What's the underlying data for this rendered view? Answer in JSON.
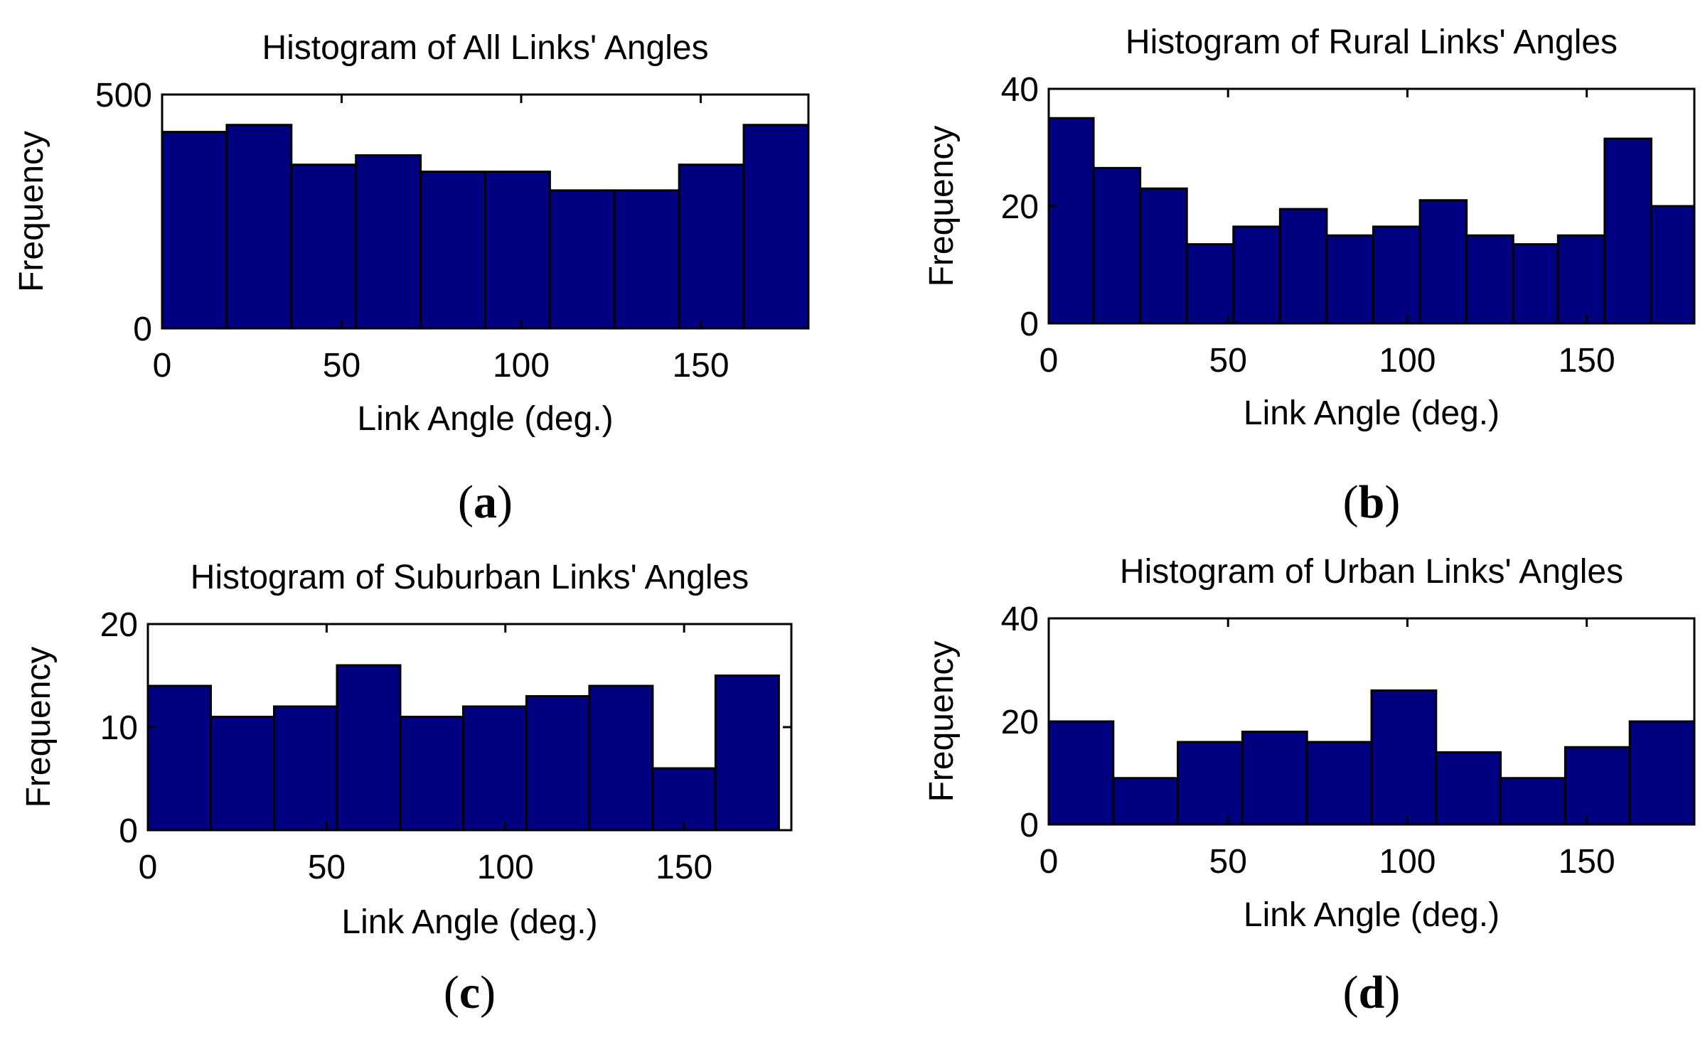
{
  "chart_data": [
    {
      "type": "bar",
      "panel_label": "a",
      "title": "Histogram of All Links' Angles",
      "xlabel": "Link Angle (deg.)",
      "ylabel": "Frequency",
      "xlim": [
        0,
        180
      ],
      "ylim": [
        0,
        500
      ],
      "xticks": [
        "0",
        "50",
        "100",
        "150"
      ],
      "yticks": [
        "0",
        "500"
      ],
      "bin_edges": [
        0,
        18,
        36,
        54,
        72,
        90,
        108,
        126,
        144,
        162,
        180
      ],
      "values": [
        420,
        435,
        350,
        370,
        335,
        335,
        295,
        295,
        350,
        435
      ],
      "bar_color": "#000080"
    },
    {
      "type": "bar",
      "panel_label": "b",
      "title": "Histogram of Rural Links' Angles",
      "xlabel": "Link Angle (deg.)",
      "ylabel": "Frequency",
      "xlim": [
        0,
        180
      ],
      "ylim": [
        0,
        40
      ],
      "xticks": [
        "0",
        "50",
        "100",
        "150"
      ],
      "yticks": [
        "0",
        "20",
        "40"
      ],
      "bin_edges": [
        0,
        12.5,
        25.5,
        38.5,
        51.5,
        64.5,
        77.5,
        90.5,
        103.5,
        116.5,
        129.5,
        142,
        155,
        168,
        180
      ],
      "values": [
        35,
        26.5,
        23,
        13.5,
        16.5,
        19.5,
        15,
        16.5,
        21,
        15,
        13.5,
        15,
        31.5,
        20
      ],
      "bar_color": "#000080"
    },
    {
      "type": "bar",
      "panel_label": "c",
      "title": "Histogram of Suburban Links' Angles",
      "xlabel": "Link Angle (deg.)",
      "ylabel": "Frequency",
      "xlim": [
        0,
        180
      ],
      "ylim": [
        0,
        20
      ],
      "xticks": [
        "0",
        "50",
        "100",
        "150"
      ],
      "yticks": [
        "0",
        "10",
        "20"
      ],
      "bin_edges": [
        0,
        17.6,
        35.3,
        52.9,
        70.6,
        88.2,
        105.9,
        123.5,
        141.2,
        158.8,
        176.5
      ],
      "values": [
        14,
        11,
        12,
        16,
        11,
        12,
        13,
        14,
        6,
        15
      ],
      "bar_color": "#000080"
    },
    {
      "type": "bar",
      "panel_label": "d",
      "title": "Histogram of Urban Links' Angles",
      "xlabel": "Link Angle (deg.)",
      "ylabel": "Frequency",
      "xlim": [
        0,
        180
      ],
      "ylim": [
        0,
        40
      ],
      "xticks": [
        "0",
        "50",
        "100",
        "150"
      ],
      "yticks": [
        "0",
        "20",
        "40"
      ],
      "bin_edges": [
        0,
        18,
        36,
        54,
        72,
        90,
        108,
        126,
        144,
        162,
        180
      ],
      "values": [
        20,
        9,
        16,
        18,
        16,
        26,
        14,
        9,
        15,
        20
      ],
      "bar_color": "#000080"
    }
  ]
}
